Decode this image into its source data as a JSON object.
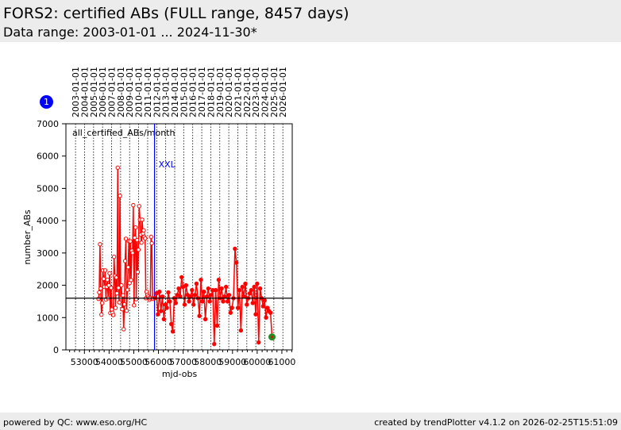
{
  "header": {
    "title": "FORS2: certified ABs (FULL range, 8457 days)",
    "subtitle": "Data range: 2003-01-01 ... 2024-11-30*"
  },
  "badge": "1",
  "footer": {
    "left": "powered by QC: www.eso.org/HC",
    "right": "created by trendPlotter v4.1.2 on 2026-02-25T15:51:09"
  },
  "chart_data": {
    "type": "line",
    "title": "all_certified_ABs/month",
    "xlabel": "mjd-obs",
    "ylabel": "number_ABs",
    "xlim": [
      52250,
      61420
    ],
    "ylim": [
      0,
      7000
    ],
    "xticks": [
      53000,
      54000,
      55000,
      56000,
      57000,
      58000,
      59000,
      60000,
      61000
    ],
    "yticks": [
      0,
      1000,
      2000,
      3000,
      4000,
      5000,
      6000,
      7000
    ],
    "year_labels": [
      "2003-01-01",
      "2004-01-01",
      "2005-01-01",
      "2006-01-01",
      "2007-01-01",
      "2008-01-01",
      "2009-01-01",
      "2010-01-01",
      "2011-01-01",
      "2012-01-01",
      "2013-01-01",
      "2014-01-01",
      "2015-01-01",
      "2016-01-01",
      "2017-01-01",
      "2018-01-01",
      "2019-01-01",
      "2020-01-01",
      "2021-01-01",
      "2022-01-01",
      "2023-01-01",
      "2024-01-01",
      "2025-01-01",
      "2026-01-01"
    ],
    "year_mjd_start": 52640,
    "reference_line": 1600,
    "event": {
      "label": "XXL",
      "mjd": 55840,
      "color": "#0000ff"
    },
    "series": [
      {
        "name": "before XXL",
        "marker": "open",
        "color": "#ff0000",
        "x_start": 53570,
        "x_step": 30,
        "values": [
          1580,
          1780,
          3270,
          1900,
          1090,
          1450,
          2460,
          2200,
          1950,
          2460,
          1560,
          1950,
          2170,
          1600,
          2000,
          2370,
          1140,
          1920,
          1250,
          1150,
          1080,
          2880,
          2290,
          1300,
          2240,
          1750,
          5640,
          1920,
          1470,
          4770,
          1600,
          2000,
          1260,
          1690,
          640,
          1410,
          2750,
          3440,
          1210,
          1860,
          2560,
          3370,
          2070,
          3360,
          2160,
          3070,
          3000,
          4480,
          1380,
          3470,
          3790,
          1570,
          3400,
          2410,
          3100,
          4450,
          4030,
          3570,
          3320,
          4030,
          3600,
          3700,
          3500,
          3450,
          1600,
          1800,
          1700,
          1650,
          1600,
          1550,
          1600,
          3500,
          3300,
          1600,
          1580
        ]
      },
      {
        "name": "after XXL",
        "marker": "filled",
        "color": "#ff0000",
        "x_start": 55860,
        "x_step": 60,
        "values": [
          1600,
          1750,
          1100,
          1800,
          1200,
          1650,
          950,
          1400,
          1300,
          1780,
          1500,
          800,
          570,
          1600,
          1450,
          1700,
          1900,
          1650,
          2250,
          1950,
          1400,
          2000,
          1700,
          1500,
          1650,
          1850,
          1400,
          1700,
          2050,
          1600,
          1050,
          2170,
          1500,
          1800,
          950,
          1650,
          1900,
          1500,
          1700,
          1850,
          180,
          1850,
          750,
          2170,
          1600,
          1900,
          1500,
          1650,
          1950,
          1500,
          1700,
          1150,
          1300,
          1600,
          3130,
          2700,
          1300,
          1850,
          600,
          1950,
          1650,
          2050,
          1400,
          1600,
          1750,
          1850,
          1450,
          1950,
          1100,
          2050,
          230,
          1900,
          1600,
          1350,
          1530,
          1000,
          1300,
          1200,
          1150,
          400
        ]
      }
    ],
    "last_point": {
      "mjd": 60600,
      "value": 400,
      "color": "#228b22"
    }
  }
}
